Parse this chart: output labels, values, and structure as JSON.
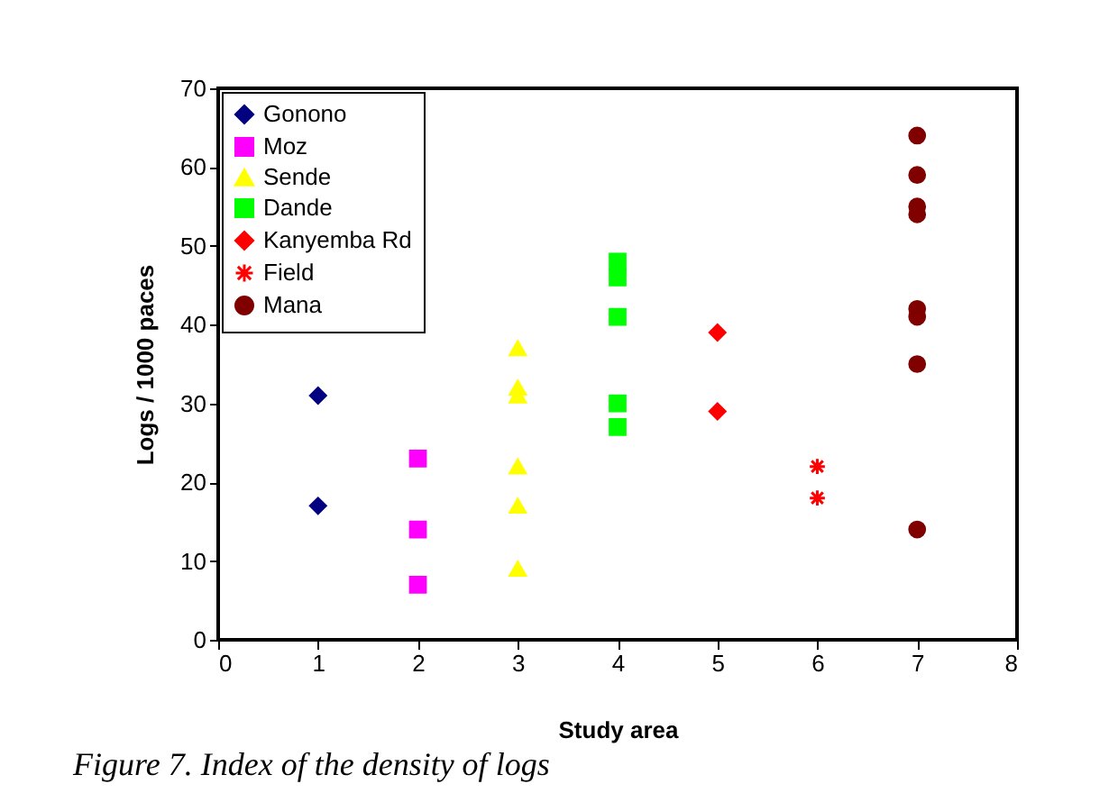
{
  "chart_data": {
    "type": "scatter",
    "xlabel": "Study area",
    "ylabel": "Logs / 1000 paces",
    "annotations": [
      "Figure 7. Index of the density of logs"
    ],
    "xlim": [
      0,
      8
    ],
    "xticks": [
      0,
      1,
      2,
      3,
      4,
      5,
      6,
      7,
      8
    ],
    "ylim": [
      0,
      70
    ],
    "yticks": [
      0,
      10,
      20,
      30,
      40,
      50,
      60,
      70
    ],
    "grid": false,
    "legend": "top left",
    "series": [
      {
        "name": "Gonono",
        "color": "#000080",
        "marker": "diamond",
        "x": [
          1,
          1
        ],
        "values": [
          31,
          17
        ]
      },
      {
        "name": "Moz",
        "color": "#ff00ff",
        "marker": "square",
        "x": [
          2,
          2,
          2
        ],
        "values": [
          23,
          14,
          7
        ]
      },
      {
        "name": "Sende",
        "color": "#ffff00",
        "marker": "triangle",
        "x": [
          3,
          3,
          3,
          3,
          3,
          3
        ],
        "values": [
          37,
          32,
          31,
          22,
          17,
          9
        ]
      },
      {
        "name": "Dande",
        "color": "#00ff00",
        "marker": "square",
        "x": [
          4,
          4,
          4,
          4,
          4
        ],
        "values": [
          48,
          46,
          41,
          30,
          27
        ]
      },
      {
        "name": "Kanyemba Rd",
        "color": "#ff0000",
        "marker": "diamond",
        "x": [
          5,
          5
        ],
        "values": [
          39,
          29
        ]
      },
      {
        "name": "Field",
        "color": "#ff0000",
        "marker": "cross",
        "x": [
          6,
          6
        ],
        "values": [
          22,
          18
        ]
      },
      {
        "name": "Mana",
        "color": "#800000",
        "marker": "circle",
        "x": [
          7,
          7,
          7,
          7,
          7,
          7,
          7,
          7
        ],
        "values": [
          64,
          59,
          55,
          54,
          42,
          41,
          35,
          14
        ]
      }
    ]
  }
}
